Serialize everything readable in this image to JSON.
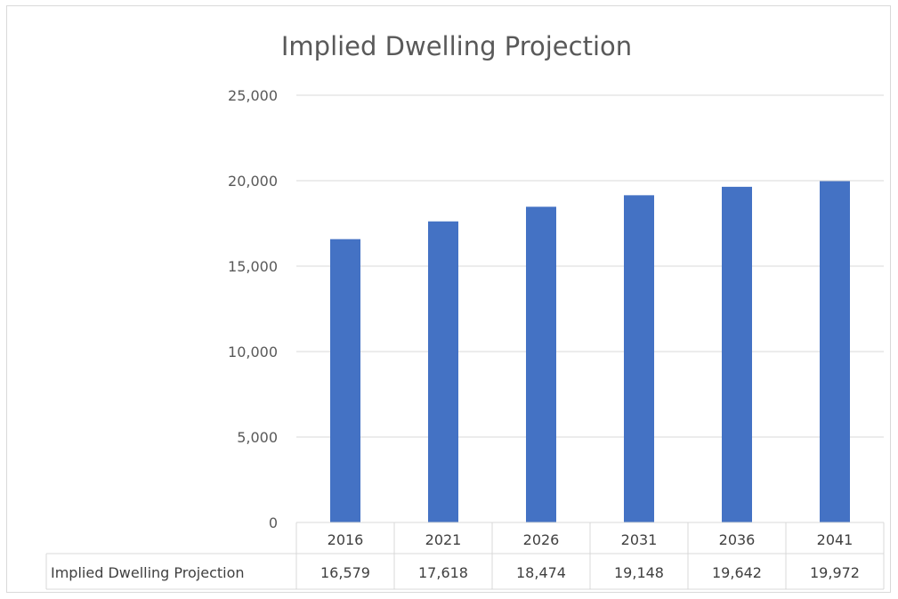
{
  "chart_data": {
    "type": "bar",
    "title": "Implied Dwelling Projection",
    "categories": [
      "2016",
      "2021",
      "2026",
      "2031",
      "2036",
      "2041"
    ],
    "series": [
      {
        "name": "Implied Dwelling Projection",
        "values": [
          16579,
          17618,
          18474,
          19148,
          19642,
          19972
        ],
        "value_labels": [
          "16,579",
          "17,618",
          "18,474",
          "19,148",
          "19,642",
          "19,972"
        ]
      }
    ],
    "ylim": [
      0,
      25000
    ],
    "yticks": [
      0,
      5000,
      10000,
      15000,
      20000,
      25000
    ],
    "ytick_labels": [
      "0",
      "5,000",
      "10,000",
      "15,000",
      "20,000",
      "25,000"
    ],
    "grid": true,
    "legend": "data-table",
    "bar_color": "#4472C4"
  }
}
